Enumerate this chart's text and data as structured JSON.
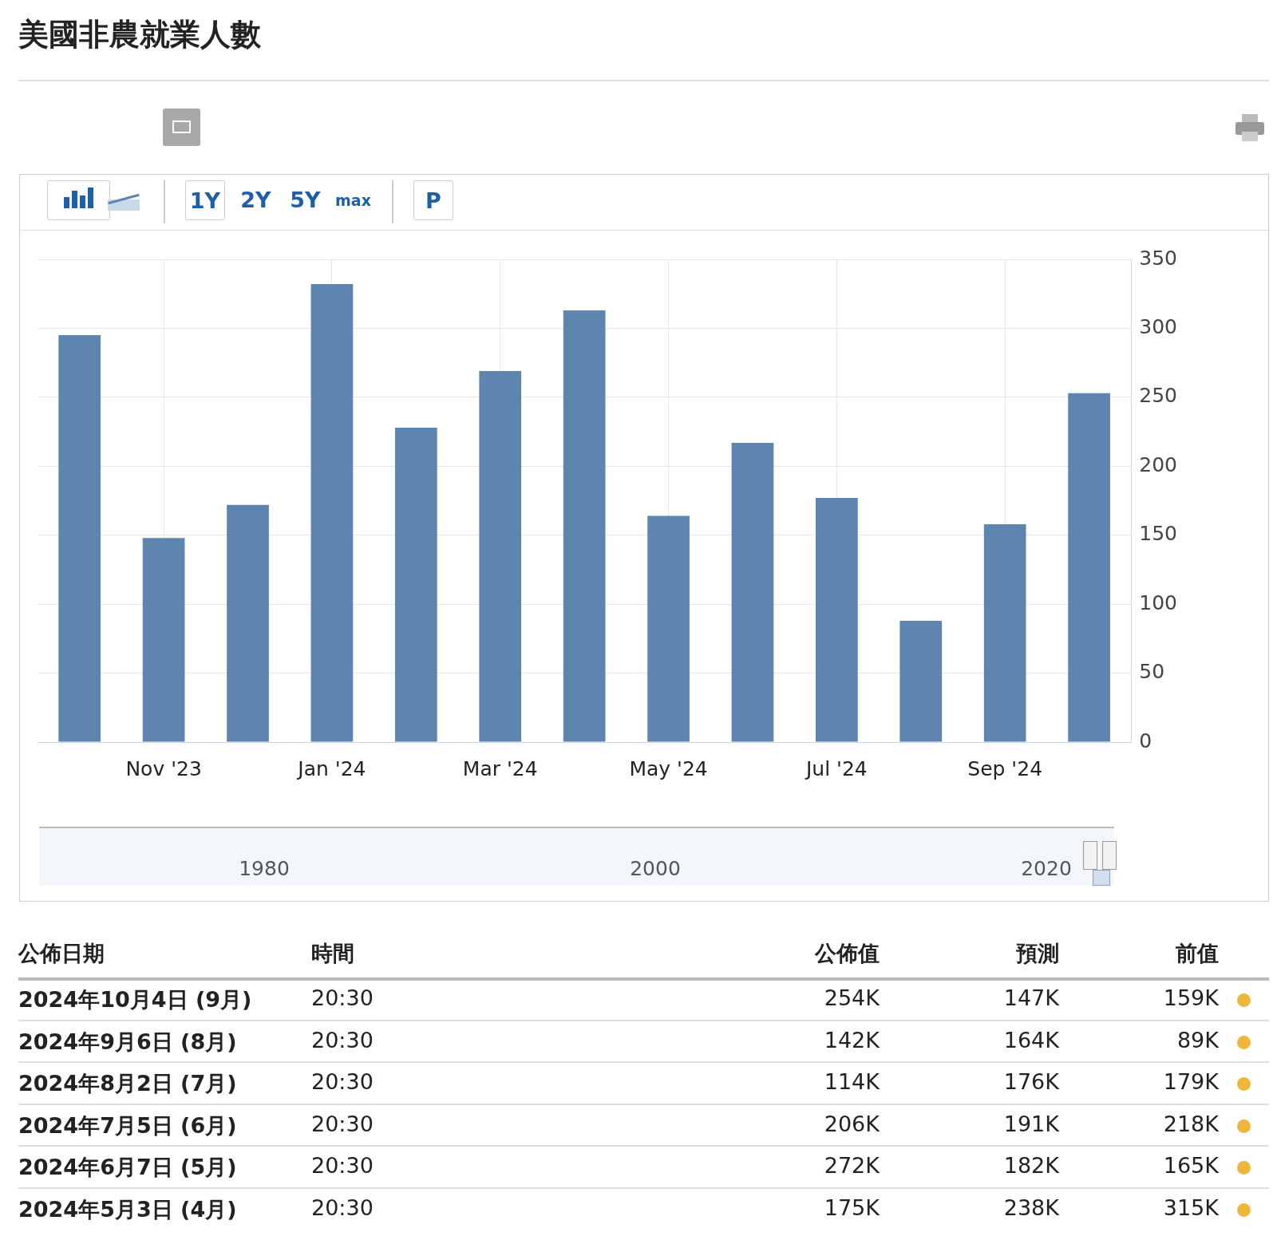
{
  "chart_data": [
    {
      "type": "bar",
      "title": "美國非農就業人數",
      "categories": [
        null,
        "Nov '23",
        null,
        "Jan '24",
        null,
        "Mar '24",
        null,
        "May '24",
        null,
        "Jul '24",
        null,
        "Sep '24",
        null
      ],
      "values": [
        295,
        148,
        172,
        332,
        228,
        269,
        313,
        164,
        217,
        177,
        88,
        158,
        253
      ],
      "color": "#5e84b0",
      "ylim": [
        0,
        350
      ],
      "yticks": [
        0,
        50,
        100,
        150,
        200,
        250,
        300,
        350
      ],
      "grid": true,
      "legend": false
    },
    {
      "type": "other",
      "annotations": [
        "1Y",
        "2Y",
        "5Y",
        "max",
        "P"
      ]
    },
    {
      "type": "other",
      "annotations": [
        "1980",
        "2000",
        "2020"
      ]
    },
    {
      "type": "other",
      "annotations": [
        "公佈日期",
        "時間",
        "公佈值",
        "預測",
        "前值",
        "2024年10月4日 (9月)",
        "20:30",
        "254K",
        "147K",
        "159K",
        "2024年9月6日 (8月)",
        "20:30",
        "142K",
        "164K",
        "89K",
        "2024年8月2日 (7月)",
        "20:30",
        "114K",
        "176K",
        "179K",
        "2024年7月5日 (6月)",
        "20:30",
        "206K",
        "191K",
        "218K",
        "2024年6月7日 (5月)",
        "20:30",
        "272K",
        "182K",
        "165K",
        "2024年5月3日 (4月)",
        "20:30",
        "175K",
        "238K",
        "315K"
      ]
    }
  ]
}
